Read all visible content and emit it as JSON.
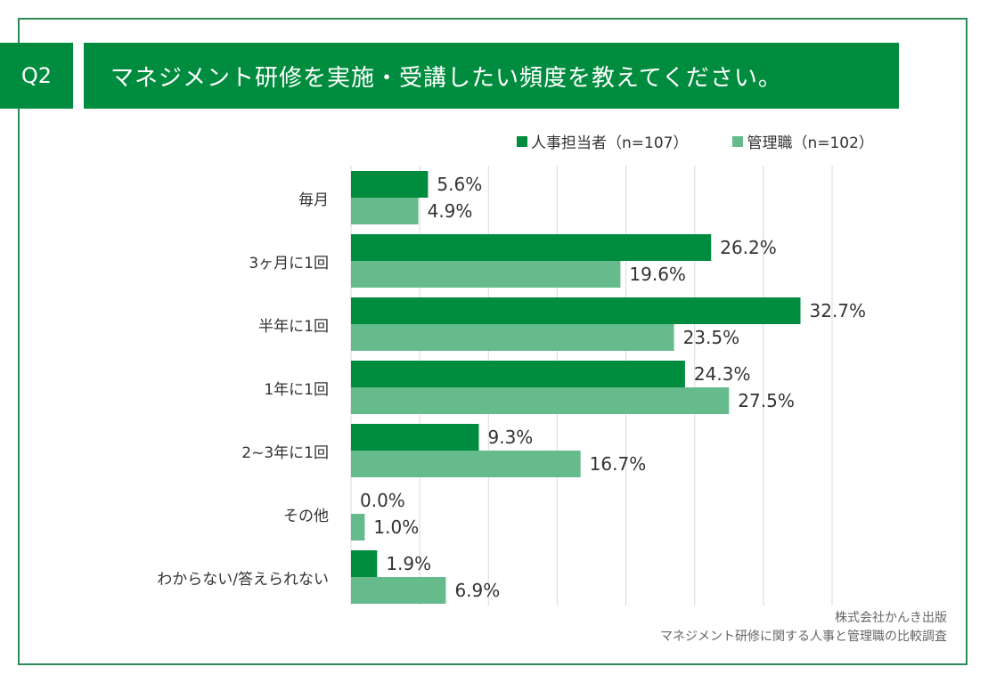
{
  "header": {
    "question_number": "Q2",
    "title": "マネジメント研修を実施・受講したい頻度を教えてください。"
  },
  "colors": {
    "primary": "#008c3e",
    "secondary": "#66bb8c",
    "frame": "#2e8b57",
    "grid": "#d9d9d9"
  },
  "footer": {
    "line1": "株式会社かんき出版",
    "line2": "マネジメント研修に関する人事と管理職の比較調査"
  },
  "chart_data": {
    "type": "bar",
    "orientation": "horizontal",
    "title": "マネジメント研修を実施・受講したい頻度を教えてください。",
    "xlabel": "",
    "ylabel": "",
    "xlim": [
      0,
      35
    ],
    "grid_step": 5,
    "grid": true,
    "legend_position": "top-right",
    "categories": [
      "毎月",
      "3ヶ月に1回",
      "半年に1回",
      "1年に1回",
      "2~3年に1回",
      "その他",
      "わからない/答えられない"
    ],
    "series": [
      {
        "name": "人事担当者（n=107）",
        "color": "#008c3e",
        "values": [
          5.6,
          26.2,
          32.7,
          24.3,
          9.3,
          0.0,
          1.9
        ],
        "labels": [
          "5.6%",
          "26.2%",
          "32.7%",
          "24.3%",
          "9.3%",
          "0.0%",
          "1.9%"
        ]
      },
      {
        "name": "管理職（n=102）",
        "color": "#66bb8c",
        "values": [
          4.9,
          19.6,
          23.5,
          27.5,
          16.7,
          1.0,
          6.9
        ],
        "labels": [
          "4.9%",
          "19.6%",
          "23.5%",
          "27.5%",
          "16.7%",
          "1.0%",
          "6.9%"
        ]
      }
    ]
  }
}
